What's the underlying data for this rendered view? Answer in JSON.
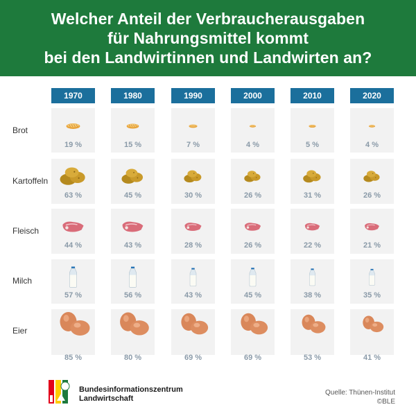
{
  "header": {
    "line1": "Welcher Anteil der Verbraucherausgaben",
    "line2": "für Nahrungsmittel kommt",
    "line3": "bei den Landwirtinnen und Landwirten an?"
  },
  "chart_data": {
    "type": "table",
    "title": "Welcher Anteil der Verbraucherausgaben für Nahrungsmittel kommt bei den Landwirtinnen und Landwirten an?",
    "unit": "%",
    "columns": [
      "1970",
      "1980",
      "1990",
      "2000",
      "2010",
      "2020"
    ],
    "rows": [
      {
        "label": "Brot",
        "icon": "bread-icon",
        "values": [
          19,
          15,
          7,
          4,
          5,
          4
        ]
      },
      {
        "label": "Kartoffeln",
        "icon": "potato-icon",
        "values": [
          63,
          45,
          30,
          26,
          31,
          26
        ]
      },
      {
        "label": "Fleisch",
        "icon": "meat-icon",
        "values": [
          44,
          43,
          28,
          26,
          22,
          21
        ]
      },
      {
        "label": "Milch",
        "icon": "milk-bottle-icon",
        "values": [
          57,
          56,
          43,
          45,
          38,
          35
        ]
      },
      {
        "label": "Eier",
        "icon": "egg-icon",
        "values": [
          85,
          80,
          69,
          69,
          53,
          41
        ]
      }
    ],
    "value_labels": [
      [
        "19 %",
        "15 %",
        "7 %",
        "4 %",
        "5 %",
        "4 %"
      ],
      [
        "63 %",
        "45 %",
        "30 %",
        "26 %",
        "31 %",
        "26 %"
      ],
      [
        "44 %",
        "43 %",
        "28 %",
        "26 %",
        "22 %",
        "21 %"
      ],
      [
        "57 %",
        "56 %",
        "43 %",
        "45 %",
        "38 %",
        "35 %"
      ],
      [
        "85 %",
        "80 %",
        "69 %",
        "69 %",
        "53 %",
        "41 %"
      ]
    ]
  },
  "colors": {
    "header_bg": "#1e7a3c",
    "year_bg": "#1b6f9c",
    "cell_bg": "#f2f2f2",
    "percent_text": "#8a9aa8"
  },
  "footer": {
    "org_line1": "Bundesinformationszentrum",
    "org_line2": "Landwirtschaft",
    "source": "Quelle: Thünen-Institut",
    "copyright": "©BLE"
  }
}
